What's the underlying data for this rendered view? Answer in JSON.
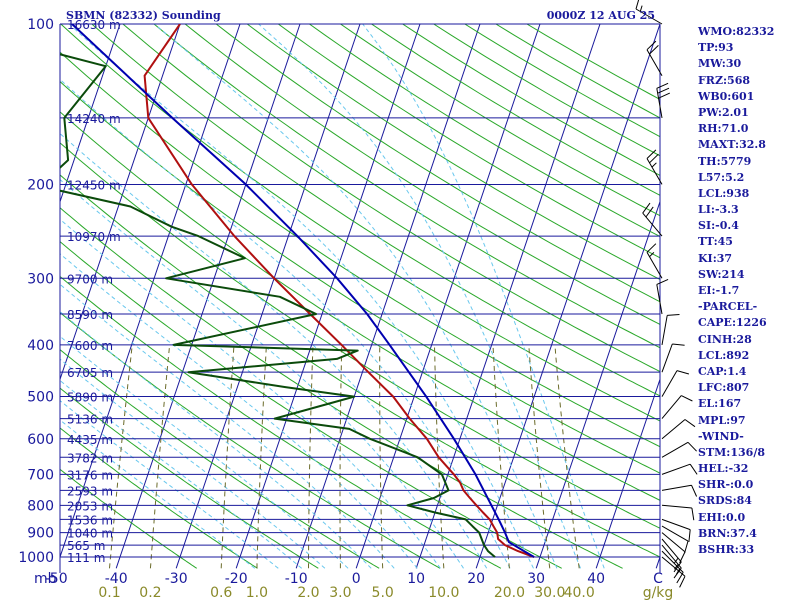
{
  "title": "SBMN (82332) Sounding",
  "datetime": "0000Z 12 AUG 25",
  "colors": {
    "background": "#ffffff",
    "isobar": "#1a1a9c",
    "text": "#1a1a9c",
    "isotherm": "#1a1a9c",
    "dry_adiabat": "#2aa82a",
    "moist_adiabat": "#6ac8ee",
    "mixing_ratio": "#6b6b2a",
    "temperature": "#b01010",
    "dewpoint": "#0b4b0b",
    "parcel": "#0000b0",
    "wind": "#000000",
    "mr_label": "#8a8a2a"
  },
  "chart_data": {
    "type": "line",
    "subtype": "skew-t log-p thermodynamic diagram",
    "y_axis": {
      "label": "mb",
      "scale": "log",
      "range": [
        1050,
        100
      ],
      "pressure_ticks": [
        1000,
        900,
        800,
        700,
        600,
        500,
        400,
        300,
        200,
        100
      ],
      "height_labels": [
        {
          "p": 1000,
          "text": "111 m"
        },
        {
          "p": 950,
          "text": "565 m"
        },
        {
          "p": 900,
          "text": "1040 m"
        },
        {
          "p": 850,
          "text": "1536 m"
        },
        {
          "p": 800,
          "text": "2053 m"
        },
        {
          "p": 750,
          "text": "2593 m"
        },
        {
          "p": 700,
          "text": "3176 m"
        },
        {
          "p": 650,
          "text": "3782 m"
        },
        {
          "p": 600,
          "text": "4435 m"
        },
        {
          "p": 550,
          "text": "5136 m"
        },
        {
          "p": 500,
          "text": "5890 m"
        },
        {
          "p": 450,
          "text": "6705 m"
        },
        {
          "p": 400,
          "text": "7600 m"
        },
        {
          "p": 350,
          "text": "8590 m"
        },
        {
          "p": 300,
          "text": "9700 m"
        },
        {
          "p": 250,
          "text": "10970 m"
        },
        {
          "p": 200,
          "text": "12450 m"
        },
        {
          "p": 150,
          "text": "14240 m"
        },
        {
          "p": 100,
          "text": "16630 m"
        }
      ]
    },
    "x_axis": {
      "label": "C",
      "range": [
        -50,
        50
      ],
      "ticks": [
        "-50",
        "-40",
        "-30",
        "-20",
        "-10",
        "0",
        "10",
        "20",
        "30",
        "40"
      ]
    },
    "mixing_ratio_axis": {
      "unit": "g/kg",
      "ticks": [
        "0.1",
        "0.2",
        "0.6",
        "1.0",
        "2.0",
        "3.0",
        "5.0",
        "10.0",
        "20.0",
        "30.0",
        "40.0"
      ]
    },
    "series": [
      {
        "role": "temperature",
        "unit": "C",
        "points": [
          [
            1000,
            29.0
          ],
          [
            975,
            26.0
          ],
          [
            950,
            23.5
          ],
          [
            925,
            22.0
          ],
          [
            900,
            21.5
          ],
          [
            875,
            20.5
          ],
          [
            850,
            19.5
          ],
          [
            825,
            18.0
          ],
          [
            800,
            16.5
          ],
          [
            775,
            15.0
          ],
          [
            750,
            13.5
          ],
          [
            725,
            12.5
          ],
          [
            700,
            11.0
          ],
          [
            650,
            7.5
          ],
          [
            600,
            4.5
          ],
          [
            550,
            0.5
          ],
          [
            500,
            -3.5
          ],
          [
            450,
            -9.0
          ],
          [
            400,
            -15.0
          ],
          [
            350,
            -22.0
          ],
          [
            300,
            -30.0
          ],
          [
            250,
            -39.0
          ],
          [
            200,
            -49.0
          ],
          [
            150,
            -60.0
          ],
          [
            125,
            -63.0
          ],
          [
            100,
            -60.0
          ]
        ]
      },
      {
        "role": "dewpoint",
        "unit": "C",
        "points": [
          [
            1000,
            22.5
          ],
          [
            975,
            21.0
          ],
          [
            950,
            20.0
          ],
          [
            900,
            18.5
          ],
          [
            875,
            17.0
          ],
          [
            850,
            15.5
          ],
          [
            825,
            10.0
          ],
          [
            800,
            5.0
          ],
          [
            775,
            9.0
          ],
          [
            750,
            11.0
          ],
          [
            700,
            9.0
          ],
          [
            650,
            4.0
          ],
          [
            600,
            -5.0
          ],
          [
            575,
            -9.0
          ],
          [
            550,
            -22.0
          ],
          [
            500,
            -10.0
          ],
          [
            480,
            -22.0
          ],
          [
            450,
            -39.0
          ],
          [
            425,
            -15.0
          ],
          [
            410,
            -12.0
          ],
          [
            400,
            -43.0
          ],
          [
            350,
            -21.0
          ],
          [
            325,
            -28.0
          ],
          [
            300,
            -48.0
          ],
          [
            275,
            -36.0
          ],
          [
            250,
            -45.0
          ],
          [
            240,
            -50.0
          ],
          [
            220,
            -58.0
          ],
          [
            205,
            -71.0
          ],
          [
            200,
            -74.0
          ],
          [
            180,
            -71.0
          ],
          [
            150,
            -74.0
          ],
          [
            120,
            -70.0
          ],
          [
            110,
            -84.0
          ],
          [
            100,
            -82.0
          ]
        ]
      },
      {
        "role": "parcel",
        "unit": "C",
        "points": [
          [
            1000,
            29.0
          ],
          [
            938,
            24.0
          ],
          [
            900,
            22.8
          ],
          [
            850,
            21.0
          ],
          [
            800,
            19.0
          ],
          [
            700,
            14.6
          ],
          [
            600,
            9.0
          ],
          [
            500,
            2.0
          ],
          [
            400,
            -7.0
          ],
          [
            350,
            -12.5
          ],
          [
            300,
            -19.5
          ],
          [
            250,
            -28.5
          ],
          [
            200,
            -40.0
          ],
          [
            150,
            -56.0
          ],
          [
            100,
            -78.0
          ]
        ]
      }
    ],
    "wind_barbs": [
      {
        "p": 1000,
        "dir": 130,
        "kt": 10
      },
      {
        "p": 975,
        "dir": 135,
        "kt": 15
      },
      {
        "p": 950,
        "dir": 140,
        "kt": 15
      },
      {
        "p": 925,
        "dir": 140,
        "kt": 15
      },
      {
        "p": 900,
        "dir": 130,
        "kt": 10
      },
      {
        "p": 875,
        "dir": 120,
        "kt": 10
      },
      {
        "p": 850,
        "dir": 110,
        "kt": 10
      },
      {
        "p": 800,
        "dir": 95,
        "kt": 10
      },
      {
        "p": 750,
        "dir": 80,
        "kt": 10
      },
      {
        "p": 700,
        "dir": 70,
        "kt": 10
      },
      {
        "p": 650,
        "dir": 60,
        "kt": 10
      },
      {
        "p": 600,
        "dir": 50,
        "kt": 10
      },
      {
        "p": 550,
        "dir": 40,
        "kt": 10
      },
      {
        "p": 500,
        "dir": 30,
        "kt": 10
      },
      {
        "p": 450,
        "dir": 20,
        "kt": 10
      },
      {
        "p": 400,
        "dir": 10,
        "kt": 10
      },
      {
        "p": 350,
        "dir": 350,
        "kt": 10
      },
      {
        "p": 300,
        "dir": 330,
        "kt": 15
      },
      {
        "p": 250,
        "dir": 320,
        "kt": 20
      },
      {
        "p": 200,
        "dir": 330,
        "kt": 25
      },
      {
        "p": 150,
        "dir": 350,
        "kt": 30
      },
      {
        "p": 125,
        "dir": 330,
        "kt": 20
      },
      {
        "p": 100,
        "dir": 300,
        "kt": 15
      }
    ]
  },
  "indices": [
    "WMO:82332",
    "TP:93",
    "MW:30",
    "FRZ:568",
    "WB0:601",
    "PW:2.01",
    "RH:71.0",
    "MAXT:32.8",
    "TH:5779",
    "L57:5.2",
    "LCL:938",
    "LI:-3.3",
    "SI:-0.4",
    "TT:45",
    "KI:37",
    "SW:214",
    "EI:-1.7",
    "-PARCEL-",
    "CAPE:1226",
    "CINH:28",
    "LCL:892",
    "CAP:1.4",
    "LFC:807",
    "EL:167",
    "MPL:97",
    "-WIND-",
    "STM:136/8",
    "HEL:-32",
    "SHR-:0.0",
    "SRDS:84",
    "EHI:0.0",
    "BRN:37.4",
    "BSHR:33"
  ]
}
